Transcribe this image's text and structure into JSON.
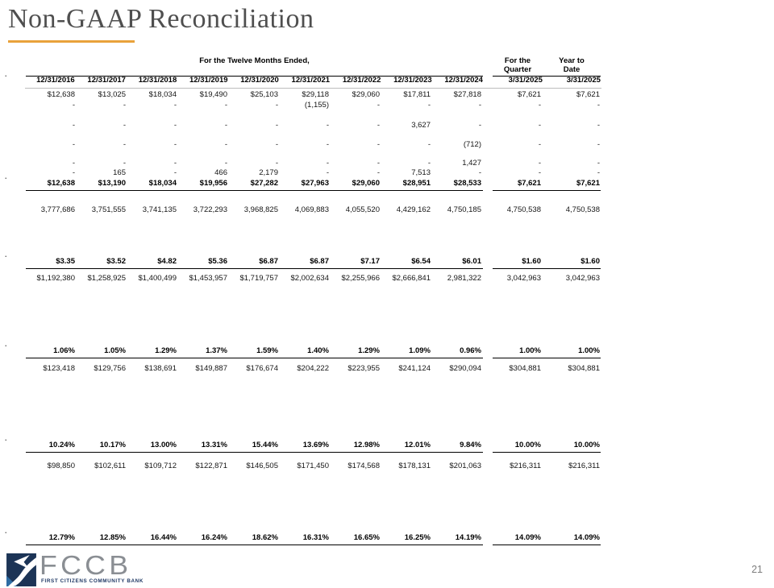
{
  "slide": {
    "title": "Non-GAAP Reconciliation",
    "page_number": "21"
  },
  "colors": {
    "accent_underline": "#E9A23B",
    "title_text": "#4F4F4F",
    "logo_navy": "#1F3864",
    "logo_gray": "#8A8E93"
  },
  "logo": {
    "acronym": "FCCB",
    "tagline": "FIRST CITIZENS COMMUNITY BANK",
    "icon": "river-road-icon"
  },
  "table": {
    "period_group_header": "For the Twelve Months Ended,",
    "quarter_group_header": [
      "For the",
      "Quarter"
    ],
    "ytd_group_header": [
      "Year to",
      "Date"
    ],
    "row_label_dot": ".",
    "year_columns": [
      "12/31/2016",
      "12/31/2017",
      "12/31/2018",
      "12/31/2019",
      "12/31/2020",
      "12/31/2021",
      "12/31/2022",
      "12/31/2023",
      "12/31/2024"
    ],
    "period_columns": [
      "3/31/2025",
      "3/31/2025"
    ],
    "rows": [
      {
        "gap_before": 2,
        "bold": false,
        "underline": false,
        "dot": false,
        "cells": [
          "$12,638",
          "$13,025",
          "$18,034",
          "$19,490",
          "$25,103",
          "$29,118",
          "$29,060",
          "$17,811",
          "$27,818",
          "$7,621",
          "$7,621"
        ]
      },
      {
        "gap_before": 1,
        "bold": false,
        "underline": false,
        "dot": false,
        "cells": [
          "-",
          "-",
          "-",
          "-",
          "-",
          "(1,155)",
          "-",
          "-",
          "-",
          "-",
          "-"
        ]
      },
      {
        "gap_before": 13,
        "bold": false,
        "underline": false,
        "dot": false,
        "cells": [
          "-",
          "-",
          "-",
          "-",
          "-",
          "-",
          "-",
          "3,627",
          "-",
          "-",
          "-"
        ]
      },
      {
        "gap_before": 12,
        "bold": false,
        "underline": false,
        "dot": false,
        "cells": [
          "-",
          "-",
          "-",
          "-",
          "-",
          "-",
          "-",
          "-",
          "(712)",
          "-",
          "-"
        ]
      },
      {
        "gap_before": 11,
        "bold": false,
        "underline": false,
        "dot": false,
        "cells": [
          "-",
          "-",
          "-",
          "-",
          "-",
          "-",
          "-",
          "-",
          "1,427",
          "-",
          "-"
        ]
      },
      {
        "gap_before": 0,
        "bold": false,
        "underline": false,
        "dot": false,
        "cells": [
          "-",
          "165",
          "-",
          "466",
          "2,179",
          "-",
          "-",
          "7,513",
          "-",
          "-",
          "-"
        ]
      },
      {
        "gap_before": 1,
        "bold": true,
        "underline": true,
        "dot": true,
        "cells": [
          "$12,638",
          "$13,190",
          "$18,034",
          "$19,956",
          "$27,282",
          "$27,963",
          "$29,060",
          "$28,951",
          "$28,533",
          "$7,621",
          "$7,621"
        ]
      },
      {
        "gap_before": 18,
        "bold": false,
        "underline": false,
        "dot": false,
        "cells": [
          "3,777,686",
          "3,751,555",
          "3,741,135",
          "3,722,293",
          "3,968,825",
          "4,069,883",
          "4,055,520",
          "4,429,162",
          "4,750,185",
          "4,750,538",
          "4,750,538"
        ]
      },
      {
        "gap_before": 52,
        "bold": true,
        "underline": true,
        "dot": true,
        "cells": [
          "$3.35",
          "$3.52",
          "$4.82",
          "$5.36",
          "$6.87",
          "$6.87",
          "$7.17",
          "$6.54",
          "$6.01",
          "$1.60",
          "$1.60"
        ]
      },
      {
        "gap_before": 6,
        "bold": false,
        "underline": false,
        "dot": false,
        "cells": [
          "$1,192,380",
          "$1,258,925",
          "$1,400,499",
          "$1,453,957",
          "$1,719,757",
          "$2,002,634",
          "$2,255,966",
          "$2,666,841",
          "2,981,322",
          "3,042,963",
          "3,042,963"
        ]
      },
      {
        "gap_before": 78,
        "bold": true,
        "underline": true,
        "dot": true,
        "cells": [
          "1.06%",
          "1.05%",
          "1.29%",
          "1.37%",
          "1.59%",
          "1.40%",
          "1.29%",
          "1.09%",
          "0.96%",
          "1.00%",
          "1.00%"
        ]
      },
      {
        "gap_before": 7,
        "bold": false,
        "underline": false,
        "dot": false,
        "cells": [
          "$123,418",
          "$129,756",
          "$138,691",
          "$149,887",
          "$176,674",
          "$204,222",
          "$223,955",
          "$241,124",
          "$290,094",
          "$304,881",
          "$304,881"
        ]
      },
      {
        "gap_before": 83,
        "bold": true,
        "underline": true,
        "dot": true,
        "cells": [
          "10.24%",
          "10.17%",
          "13.00%",
          "13.31%",
          "15.44%",
          "13.69%",
          "12.98%",
          "12.01%",
          "9.84%",
          "10.00%",
          "10.00%"
        ]
      },
      {
        "gap_before": 11,
        "bold": false,
        "underline": false,
        "dot": false,
        "cells": [
          "$98,850",
          "$102,611",
          "$109,712",
          "$122,871",
          "$146,505",
          "$171,450",
          "$174,568",
          "$178,131",
          "$201,063",
          "$216,311",
          "$216,311"
        ]
      },
      {
        "gap_before": 77,
        "bold": true,
        "underline": true,
        "dot": true,
        "cells": [
          "12.79%",
          "12.85%",
          "16.44%",
          "16.24%",
          "18.62%",
          "16.31%",
          "16.65%",
          "16.25%",
          "14.19%",
          "14.09%",
          "14.09%"
        ]
      }
    ]
  }
}
